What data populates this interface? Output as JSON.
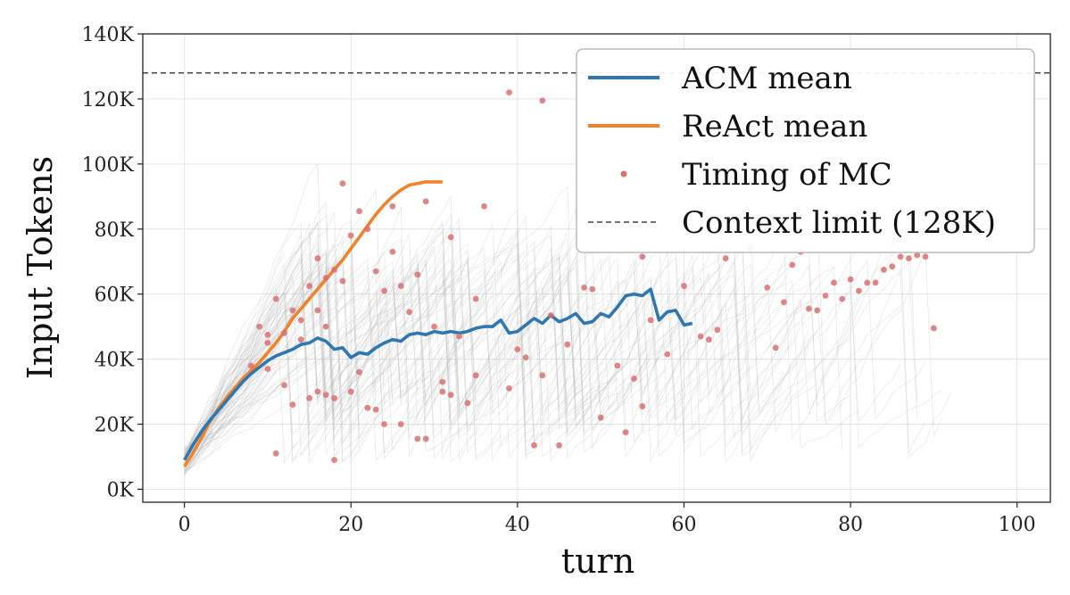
{
  "chart_data": {
    "type": "line",
    "title": "",
    "xlabel": "turn",
    "ylabel": "Input Tokens",
    "xlim": [
      -5,
      104
    ],
    "ylim": [
      -4000,
      140000
    ],
    "xticks": [
      0,
      20,
      40,
      60,
      80,
      100
    ],
    "xtick_labels": [
      "0",
      "20",
      "40",
      "60",
      "80",
      "100"
    ],
    "yticks": [
      0,
      20000,
      40000,
      60000,
      80000,
      100000,
      120000,
      140000
    ],
    "ytick_labels": [
      "0K",
      "20K",
      "40K",
      "60K",
      "80K",
      "100K",
      "120K",
      "140K"
    ],
    "grid": true,
    "legend_position": "top-right",
    "colors": {
      "acm": "#2e77b0",
      "react": "#f0832a",
      "mc": "#d9706e",
      "limit": "#444444",
      "traces": "#bdbdbd"
    },
    "series": [
      {
        "name": "ACM mean",
        "x": [
          0,
          1,
          2,
          3,
          4,
          5,
          6,
          7,
          8,
          9,
          10,
          11,
          12,
          13,
          14,
          15,
          16,
          17,
          18,
          19,
          20,
          21,
          22,
          23,
          24,
          25,
          26,
          27,
          28,
          29,
          30,
          31,
          32,
          33,
          34,
          35,
          36,
          37,
          38,
          39,
          40,
          41,
          42,
          43,
          44,
          45,
          46,
          47,
          48,
          49,
          50,
          51,
          52,
          53,
          54,
          55,
          56,
          57,
          58,
          59,
          60,
          61
        ],
        "y": [
          9000,
          13500,
          17500,
          21000,
          24000,
          27000,
          30000,
          33000,
          35500,
          37500,
          39500,
          41000,
          42000,
          43000,
          44500,
          45000,
          46500,
          45500,
          43000,
          43500,
          40500,
          42000,
          41500,
          43500,
          45000,
          46000,
          45500,
          47500,
          48000,
          47500,
          48500,
          48000,
          48500,
          48000,
          48500,
          49500,
          50000,
          50000,
          52000,
          48000,
          48500,
          50500,
          52500,
          51000,
          53500,
          51500,
          52500,
          54000,
          51000,
          51500,
          54000,
          53000,
          56000,
          59500,
          60000,
          59500,
          61500,
          52000,
          54500,
          55000,
          50500,
          51000
        ]
      },
      {
        "name": "ReAct mean",
        "x": [
          0,
          1,
          2,
          3,
          4,
          5,
          6,
          7,
          8,
          9,
          10,
          11,
          12,
          13,
          14,
          15,
          16,
          17,
          18,
          19,
          20,
          21,
          22,
          23,
          24,
          25,
          26,
          27,
          28,
          29,
          30,
          31
        ],
        "y": [
          7000,
          11000,
          15500,
          20500,
          24500,
          28000,
          31000,
          34000,
          36500,
          39000,
          42000,
          45000,
          48500,
          52500,
          55500,
          58500,
          61500,
          64500,
          67500,
          70500,
          74000,
          77500,
          81000,
          84500,
          87500,
          90000,
          92000,
          93500,
          94000,
          94500,
          94500,
          94500
        ]
      }
    ],
    "scatter_series": {
      "name": "Timing of MC",
      "x": [
        8,
        9,
        10,
        10,
        10,
        11,
        11,
        12,
        12,
        13,
        13,
        14,
        14,
        15,
        15,
        16,
        16,
        16,
        17,
        17,
        17,
        18,
        18,
        18,
        19,
        19,
        20,
        20,
        21,
        21,
        22,
        22,
        23,
        23,
        24,
        24,
        25,
        25,
        26,
        26,
        27,
        28,
        28,
        29,
        29,
        30,
        31,
        31,
        32,
        32,
        33,
        34,
        35,
        35,
        36,
        39,
        39,
        40,
        41,
        42,
        43,
        43,
        44,
        45,
        46,
        48,
        49,
        50,
        52,
        53,
        54,
        55,
        55,
        56,
        58,
        60,
        62,
        63,
        64,
        65,
        68,
        70,
        71,
        72,
        73,
        74,
        75,
        76,
        77,
        78,
        79,
        80,
        81,
        82,
        83,
        84,
        85,
        86,
        87,
        88,
        89,
        90
      ],
      "y": [
        38000,
        50000,
        45000,
        47500,
        37000,
        58500,
        11000,
        48000,
        32000,
        55000,
        26000,
        52000,
        46000,
        62500,
        28000,
        71000,
        55000,
        30000,
        65000,
        29000,
        50000,
        67500,
        28000,
        9000,
        94000,
        64000,
        78000,
        30000,
        85500,
        36000,
        80000,
        25000,
        24500,
        67000,
        61000,
        20000,
        87000,
        73000,
        62500,
        20000,
        54500,
        66000,
        15500,
        88500,
        15500,
        50000,
        33000,
        30000,
        77500,
        29000,
        47000,
        26500,
        58500,
        35000,
        87000,
        122000,
        31000,
        43000,
        40500,
        13500,
        119500,
        35000,
        53500,
        13500,
        44500,
        62000,
        61500,
        22000,
        38000,
        17500,
        34000,
        71500,
        25500,
        52000,
        41500,
        62500,
        47000,
        46000,
        49000,
        71000,
        74000,
        62000,
        43500,
        57500,
        69000,
        73000,
        55500,
        55000,
        59500,
        63500,
        58500,
        64500,
        61000,
        63500,
        63500,
        67500,
        68500,
        71500,
        71000,
        72000,
        71500,
        49500
      ]
    },
    "reference_line": {
      "name": "Context limit (128K)",
      "y": 128000
    },
    "legend": [
      {
        "label": "ACM mean"
      },
      {
        "label": "ReAct mean"
      },
      {
        "label": "Timing of MC"
      },
      {
        "label": "Context limit (128K)"
      }
    ]
  }
}
